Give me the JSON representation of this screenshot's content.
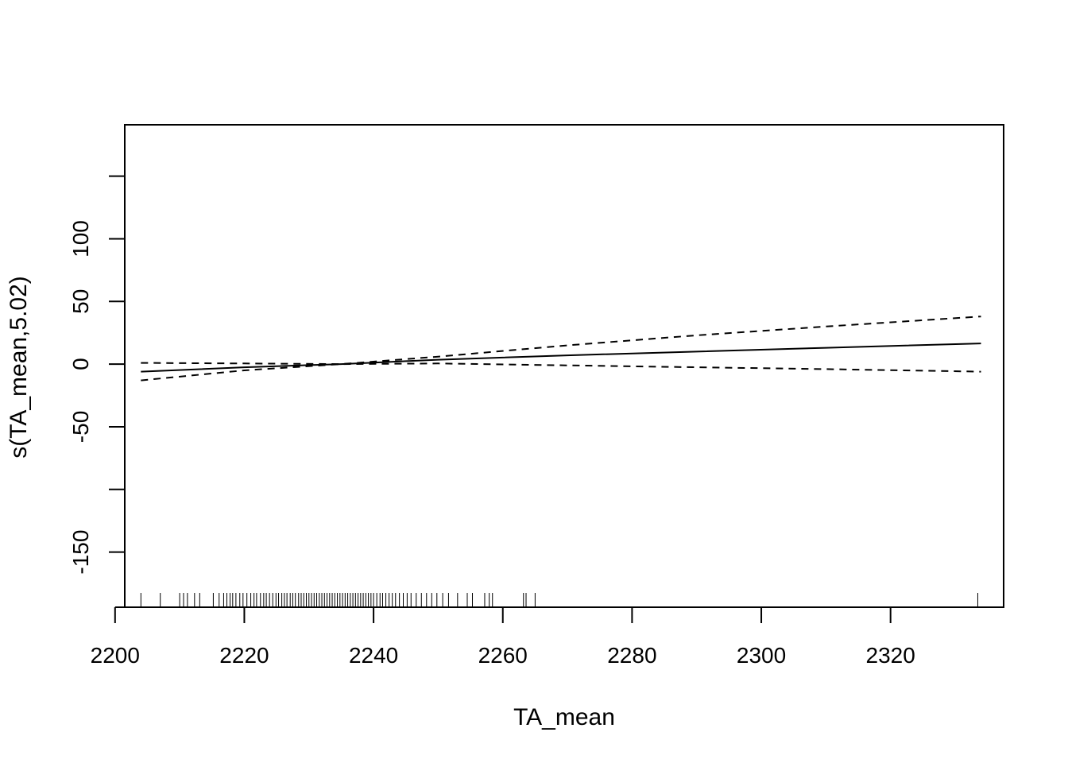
{
  "chart_data": {
    "type": "line",
    "title": "",
    "xlabel": "TA_mean",
    "ylabel": "s(TA_mean,5.02)",
    "xlim": [
      2201.5,
      2337.5
    ],
    "ylim": [
      -194,
      191
    ],
    "x_ticks": [
      2200,
      2220,
      2240,
      2260,
      2280,
      2300,
      2320
    ],
    "x_tick_labels": [
      "2200",
      "2220",
      "2240",
      "2260",
      "2280",
      "2300",
      "2320"
    ],
    "y_ticks": [
      -200,
      -150,
      -100,
      -50,
      0,
      50,
      100,
      150
    ],
    "y_tick_labels": [
      "",
      "-150",
      "",
      "-50",
      "0",
      "50",
      "100",
      ""
    ],
    "grid": false,
    "legend": "none",
    "colors": {
      "line": "#000000",
      "background": "#ffffff"
    },
    "series": [
      {
        "role": "fit",
        "style": "solid",
        "points": [
          [
            2204,
            -6
          ],
          [
            2220,
            -2.5
          ],
          [
            2235,
            0
          ],
          [
            2250,
            3.5
          ],
          [
            2270,
            7
          ],
          [
            2290,
            10
          ],
          [
            2310,
            13
          ],
          [
            2334,
            16.5
          ]
        ]
      },
      {
        "role": "upper-band",
        "style": "dashed",
        "points": [
          [
            2204,
            1
          ],
          [
            2220,
            0.5
          ],
          [
            2235,
            0
          ],
          [
            2250,
            6
          ],
          [
            2270,
            15
          ],
          [
            2290,
            23
          ],
          [
            2310,
            30
          ],
          [
            2334,
            38
          ]
        ]
      },
      {
        "role": "lower-band",
        "style": "dashed",
        "points": [
          [
            2204,
            -13
          ],
          [
            2220,
            -5
          ],
          [
            2235,
            0
          ],
          [
            2250,
            0.5
          ],
          [
            2270,
            -1
          ],
          [
            2290,
            -2.5
          ],
          [
            2310,
            -4
          ],
          [
            2334,
            -6
          ]
        ]
      }
    ],
    "rug": [
      2204,
      2207,
      2210,
      2210.6,
      2211.2,
      2212.3,
      2213.1,
      2215.2,
      2216.1,
      2216.8,
      2217.3,
      2217.8,
      2218.2,
      2218.7,
      2219.3,
      2219.8,
      2220.4,
      2221,
      2221.5,
      2221.9,
      2222.5,
      2223,
      2223.4,
      2223.9,
      2224.4,
      2224.9,
      2225.3,
      2225.8,
      2226.2,
      2226.6,
      2227.1,
      2227.5,
      2227.9,
      2228.4,
      2228.8,
      2229.2,
      2229.6,
      2230,
      2230.4,
      2230.8,
      2231.2,
      2231.6,
      2232,
      2232.4,
      2232.8,
      2233.2,
      2233.6,
      2234,
      2234.4,
      2234.8,
      2235.2,
      2235.6,
      2236,
      2236.4,
      2236.8,
      2237.2,
      2237.6,
      2238,
      2238.4,
      2238.8,
      2239.2,
      2239.6,
      2240,
      2240.5,
      2241,
      2241.4,
      2241.9,
      2242.4,
      2242.9,
      2243.4,
      2244,
      2244.6,
      2245.2,
      2245.8,
      2246.6,
      2247.4,
      2248.2,
      2249,
      2249.8,
      2250.7,
      2251.6,
      2253,
      2254.5,
      2255.3,
      2257.2,
      2257.9,
      2258.4,
      2263.2,
      2263.6,
      2265,
      2333.5
    ]
  }
}
